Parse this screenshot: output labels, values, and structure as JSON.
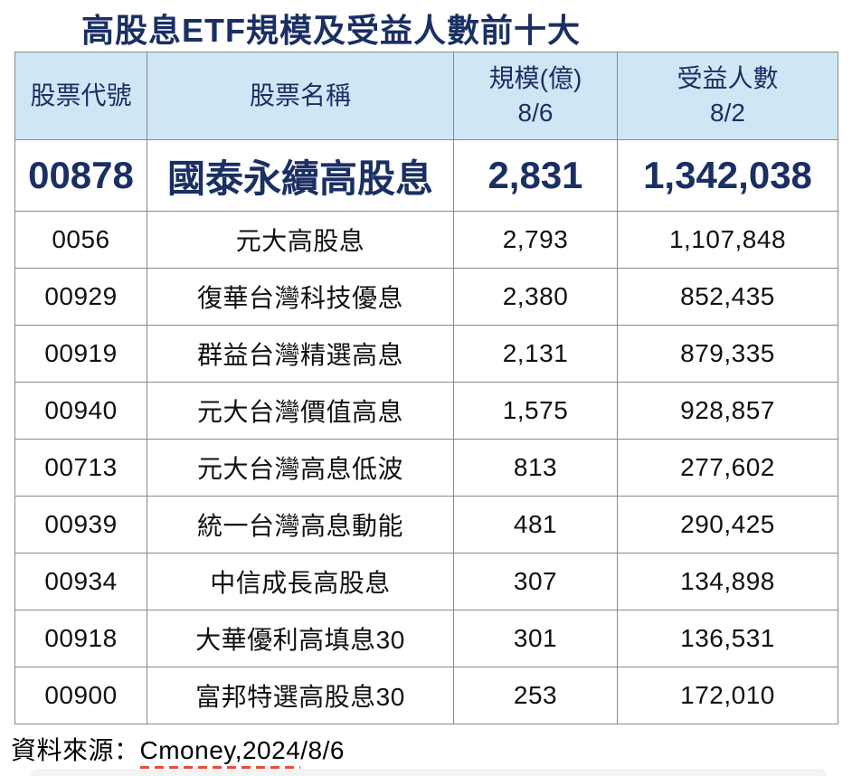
{
  "title": "高股息ETF規模及受益人數前十大",
  "colors": {
    "navy": "#1a2f63",
    "header_bg": "#cfe7f5",
    "border": "#8a8a8a",
    "underline_red": "#f04a38"
  },
  "table": {
    "columns": [
      {
        "key": "code",
        "label": "股票代號"
      },
      {
        "key": "name",
        "label": "股票名稱"
      },
      {
        "key": "scale",
        "label": "規模(億)\n8/6"
      },
      {
        "key": "holders",
        "label": "受益人數\n8/2"
      }
    ],
    "rows": [
      {
        "code": "00878",
        "name": "國泰永續高股息",
        "scale": "2,831",
        "holders": "1,342,038",
        "highlight": true
      },
      {
        "code": "0056",
        "name": "元大高股息",
        "scale": "2,793",
        "holders": "1,107,848",
        "highlight": false
      },
      {
        "code": "00929",
        "name": "復華台灣科技優息",
        "scale": "2,380",
        "holders": "852,435",
        "highlight": false
      },
      {
        "code": "00919",
        "name": "群益台灣精選高息",
        "scale": "2,131",
        "holders": "879,335",
        "highlight": false
      },
      {
        "code": "00940",
        "name": "元大台灣價值高息",
        "scale": "1,575",
        "holders": "928,857",
        "highlight": false
      },
      {
        "code": "00713",
        "name": "元大台灣高息低波",
        "scale": "813",
        "holders": "277,602",
        "highlight": false
      },
      {
        "code": "00939",
        "name": "統一台灣高息動能",
        "scale": "481",
        "holders": "290,425",
        "highlight": false
      },
      {
        "code": "00934",
        "name": "中信成長高股息",
        "scale": "307",
        "holders": "134,898",
        "highlight": false
      },
      {
        "code": "00918",
        "name": "大華優利高填息30",
        "scale": "301",
        "holders": "136,531",
        "highlight": false
      },
      {
        "code": "00900",
        "name": "富邦特選高股息30",
        "scale": "253",
        "holders": "172,010",
        "highlight": false
      }
    ]
  },
  "footer": {
    "source_prefix": "資料來源：",
    "source_underlined": "Cmoney,2024",
    "source_suffix": "/8/6"
  },
  "chart_data": {
    "type": "table",
    "title": "高股息ETF規模及受益人數前十大",
    "columns": [
      "股票代號",
      "股票名稱",
      "規模(億) 8/6",
      "受益人數 8/2"
    ],
    "rows": [
      [
        "00878",
        "國泰永續高股息",
        2831,
        1342038
      ],
      [
        "0056",
        "元大高股息",
        2793,
        1107848
      ],
      [
        "00929",
        "復華台灣科技優息",
        2380,
        852435
      ],
      [
        "00919",
        "群益台灣精選高息",
        2131,
        879335
      ],
      [
        "00940",
        "元大台灣價值高息",
        1575,
        928857
      ],
      [
        "00713",
        "元大台灣高息低波",
        813,
        277602
      ],
      [
        "00939",
        "統一台灣高息動能",
        481,
        290425
      ],
      [
        "00934",
        "中信成長高股息",
        307,
        134898
      ],
      [
        "00918",
        "大華優利高填息30",
        301,
        136531
      ],
      [
        "00900",
        "富邦特選高股息30",
        253,
        172010
      ]
    ],
    "highlighted_row": "00878",
    "source_note": "資料來源：Cmoney,2024/8/6"
  }
}
